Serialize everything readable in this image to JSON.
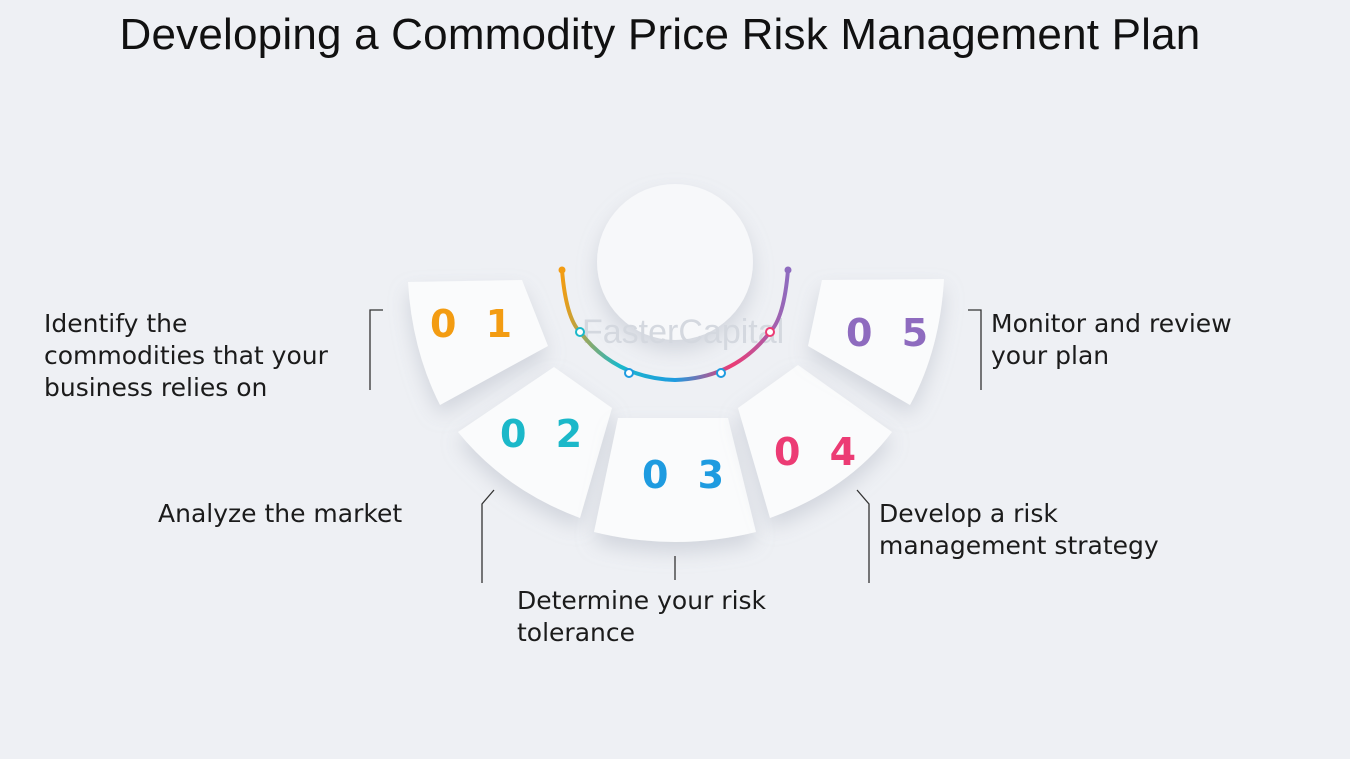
{
  "title": "Developing a Commodity Price Risk Management Plan",
  "watermark": "FasterCapital",
  "steps": [
    {
      "number": "0 1",
      "color": "#f39c12",
      "text_lines": [
        "Identify the",
        "commodities that your",
        "business relies on"
      ]
    },
    {
      "number": "0 2",
      "color": "#1bb8c9",
      "text_lines": [
        "Analyze the market"
      ]
    },
    {
      "number": "0 3",
      "color": "#1e9be0",
      "text_lines": [
        "Determine your risk",
        "tolerance"
      ]
    },
    {
      "number": "0 4",
      "color": "#ec3b74",
      "text_lines": [
        "Develop a risk",
        "management strategy"
      ]
    },
    {
      "number": "0 5",
      "color": "#8e6bbf",
      "text_lines": [
        "Monitor and review",
        "your plan"
      ]
    }
  ]
}
